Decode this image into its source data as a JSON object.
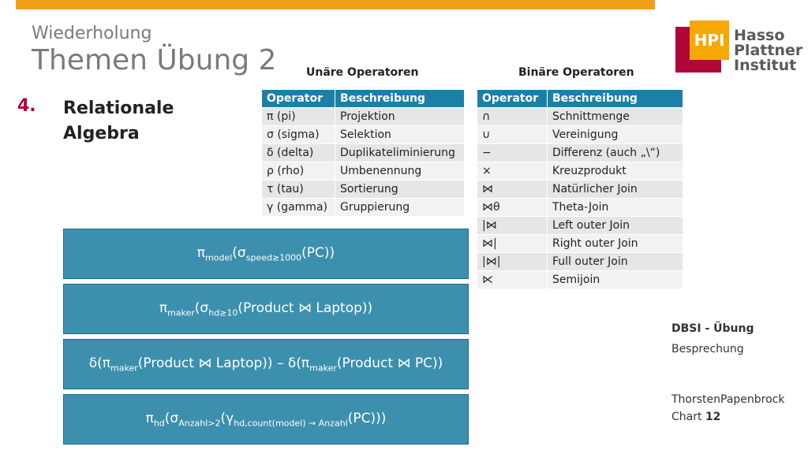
{
  "header": {
    "subtitle": "Wiederholung",
    "title": "Themen Übung 2"
  },
  "logo": {
    "hpi": "HPI",
    "line1": "Hasso",
    "line2": "Plattner",
    "line3": "Institut"
  },
  "section": {
    "number": "4.",
    "line1": "Relationale",
    "line2": "Algebra"
  },
  "unary": {
    "heading": "Unäre Operatoren",
    "columns": [
      "Operator",
      "Beschreibung"
    ],
    "rows": [
      [
        "π (pi)",
        "Projektion"
      ],
      [
        "σ (sigma)",
        "Selektion"
      ],
      [
        "δ (delta)",
        "Duplikateliminierung"
      ],
      [
        "ρ (rho)",
        "Umbenennung"
      ],
      [
        "τ (tau)",
        "Sortierung"
      ],
      [
        "γ (gamma)",
        "Gruppierung"
      ]
    ]
  },
  "binary": {
    "heading": "Binäre Operatoren",
    "columns": [
      "Operator",
      "Beschreibung"
    ],
    "rows": [
      [
        "∩",
        "Schnittmenge"
      ],
      [
        "∪",
        "Vereinigung"
      ],
      [
        "−",
        "Differenz (auch „\\“)"
      ],
      [
        "×",
        "Kreuzprodukt"
      ],
      [
        "⋈",
        "Natürlicher Join"
      ],
      [
        "⋈θ",
        "Theta-Join"
      ],
      [
        "|⋈",
        "Left outer Join"
      ],
      [
        "⋈|",
        "Right outer Join"
      ],
      [
        "|⋈|",
        "Full outer Join"
      ],
      [
        "⋉",
        "Semijoin"
      ]
    ]
  },
  "formulas": {
    "f1": {
      "a": "π",
      "a_sub": "model",
      "b": "(σ",
      "b_sub": "speed≥1000",
      "c": "(PC))"
    },
    "f2": {
      "a": "π",
      "a_sub": "maker",
      "b": "(σ",
      "b_sub": "hd≥10",
      "c": "(Product ⋈ Laptop))"
    },
    "f3": {
      "a": "δ(π",
      "a_sub": "maker",
      "b": "(Product ⋈ Laptop)) – δ(π",
      "b_sub": "maker",
      "c": "(Product ⋈ PC))"
    },
    "f4": {
      "a": "π",
      "a_sub": "hd",
      "b": "(σ",
      "b_sub": "Anzahl>2",
      "c": "(γ",
      "c_sub": "hd,count(model) → Anzahl",
      "d": "(PC)))"
    }
  },
  "sidebar": {
    "course": "DBSI - Übung",
    "type": "Besprechung",
    "author": "ThorstenPapenbrock",
    "chart_label": "Chart",
    "chart_number": "12"
  }
}
